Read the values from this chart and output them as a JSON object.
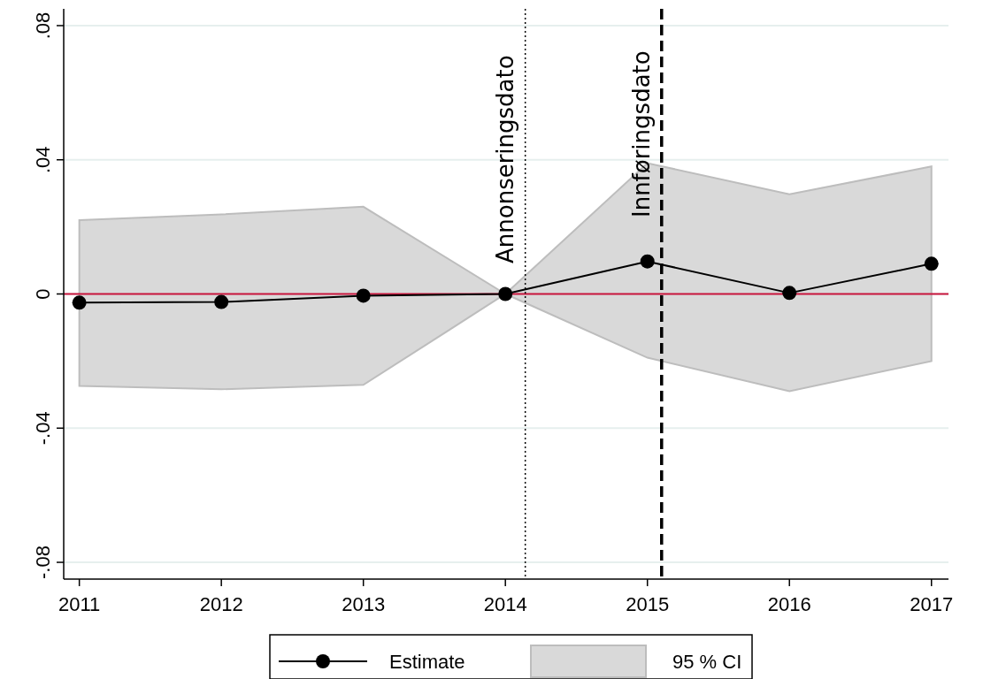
{
  "chart_data": {
    "type": "line",
    "x": [
      2011,
      2012,
      2013,
      2014,
      2015,
      2016,
      2017
    ],
    "xlim": [
      2010.89,
      2017.12
    ],
    "xticks": [
      2011,
      2012,
      2013,
      2014,
      2015,
      2016,
      2017
    ],
    "ylim": [
      -0.085,
      0.085
    ],
    "yticks": [
      {
        "value": -0.08,
        "label": "-.08"
      },
      {
        "value": -0.04,
        "label": "-.04"
      },
      {
        "value": 0,
        "label": "0"
      },
      {
        "value": 0.04,
        "label": ".04"
      },
      {
        "value": 0.08,
        "label": ".08"
      }
    ],
    "grid": "y",
    "legend": "bottom",
    "annotations": [
      "95 % CI"
    ],
    "series": [
      {
        "name": "Estimate",
        "color": "#000000",
        "marker": "circle",
        "values": [
          -0.0026,
          -0.0024,
          -0.0005,
          0,
          0.0097,
          0.0003,
          0.009
        ],
        "lower": [
          -0.0274,
          -0.0284,
          -0.0271,
          0,
          -0.019,
          -0.029,
          -0.02
        ],
        "upper": [
          0.022,
          0.0237,
          0.026,
          0,
          0.039,
          0.0297,
          0.038
        ]
      }
    ],
    "ref_lines": [
      {
        "axis": "y",
        "value": 0,
        "color": "#c8143c",
        "line_style": "solid"
      },
      {
        "axis": "x",
        "value": 2014.14,
        "label": "Annonseringsdato",
        "color": "#000000",
        "line_style": "dotted"
      },
      {
        "axis": "x",
        "value": 2015.1,
        "label": "Innføringsdato",
        "color": "#000000",
        "line_style": "dashed"
      }
    ]
  }
}
